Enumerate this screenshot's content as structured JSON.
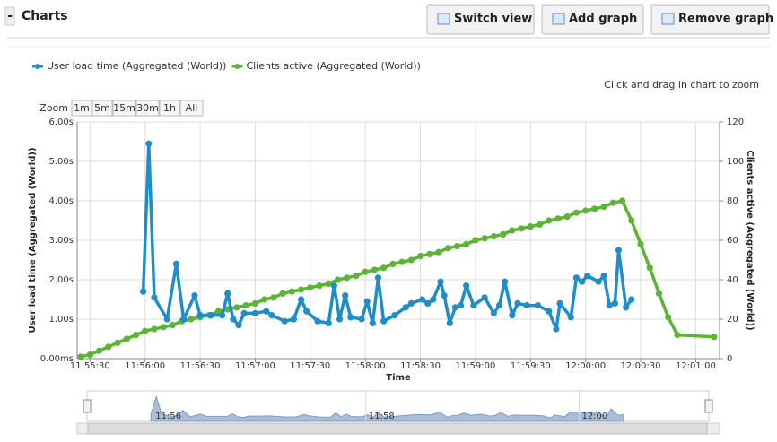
{
  "header": {
    "collapse": "-",
    "title": "Charts",
    "buttons": [
      "Switch view",
      "Add graph",
      "Remove graph"
    ]
  },
  "hint": "Click and drag in chart to zoom",
  "zoom": {
    "label": "Zoom",
    "buttons": [
      "1m",
      "5m",
      "15m",
      "30m",
      "1h",
      "All"
    ]
  },
  "navigator": {
    "labels": [
      "11:56",
      "11:58",
      "12:00"
    ]
  },
  "chart_data": {
    "type": "line",
    "x_label": "Time",
    "y_label": "User load time (Aggregated (World))",
    "y2_label": "Clients active (Aggregated (World))",
    "xlim": [
      "11:55:23",
      "12:01:13"
    ],
    "xticks": [
      "11:55:30",
      "11:56:00",
      "11:56:30",
      "11:57:00",
      "11:57:30",
      "11:58:00",
      "11:58:30",
      "11:59:00",
      "11:59:30",
      "12:00:00",
      "12:00:30",
      "12:01:00"
    ],
    "ylim": [
      0,
      6
    ],
    "yticks": [
      {
        "value": 0,
        "label": "0.00ms"
      },
      {
        "value": 1,
        "label": "1.00s"
      },
      {
        "value": 2,
        "label": "2.00s"
      },
      {
        "value": 3,
        "label": "3.00s"
      },
      {
        "value": 4,
        "label": "4.00s"
      },
      {
        "value": 5,
        "label": "5.00s"
      },
      {
        "value": 6,
        "label": "6.00s"
      }
    ],
    "y2lim": [
      0,
      120
    ],
    "y2ticks": [
      0,
      20,
      40,
      60,
      80,
      100,
      120
    ],
    "grid": true,
    "legend": "top-left",
    "series": [
      {
        "name": "User load time (Aggregated (World))",
        "color": "#1f8dc8",
        "axis": "y",
        "x": [
          "11:55:59",
          "11:56:02",
          "11:56:05",
          "11:56:12",
          "11:56:17",
          "11:56:21",
          "11:56:27",
          "11:56:30",
          "11:56:36",
          "11:56:42",
          "11:56:45",
          "11:56:48",
          "11:56:51",
          "11:56:54",
          "11:57:00",
          "11:57:06",
          "11:57:09",
          "11:57:16",
          "11:57:21",
          "11:57:25",
          "11:57:28",
          "11:57:34",
          "11:57:40",
          "11:57:43",
          "11:57:46",
          "11:57:49",
          "11:57:52",
          "11:57:58",
          "11:58:01",
          "11:58:04",
          "11:58:07",
          "11:58:10",
          "11:58:16",
          "11:58:22",
          "11:58:25",
          "11:58:31",
          "11:58:34",
          "11:58:37",
          "11:58:41",
          "11:58:43",
          "11:58:46",
          "11:58:49",
          "11:58:52",
          "11:58:55",
          "11:58:59",
          "11:59:05",
          "11:59:10",
          "11:59:13",
          "11:59:16",
          "11:59:20",
          "11:59:23",
          "11:59:28",
          "11:59:34",
          "11:59:40",
          "11:59:44",
          "11:59:46",
          "11:59:52",
          "11:59:55",
          "11:59:58",
          "12:00:01",
          "12:00:07",
          "12:00:10",
          "12:00:13",
          "12:00:16",
          "12:00:18",
          "12:00:22",
          "12:00:25"
        ],
        "values": [
          1.7,
          5.45,
          1.55,
          1.0,
          2.4,
          1.0,
          1.6,
          1.1,
          1.1,
          1.1,
          1.65,
          1.0,
          0.85,
          1.15,
          1.15,
          1.2,
          1.1,
          0.95,
          1.0,
          1.5,
          1.2,
          0.95,
          0.9,
          1.85,
          1.0,
          1.6,
          1.05,
          1.0,
          1.45,
          0.9,
          2.05,
          0.95,
          1.1,
          1.3,
          1.4,
          1.5,
          1.4,
          1.5,
          1.95,
          1.6,
          0.9,
          1.3,
          1.35,
          1.85,
          1.35,
          1.55,
          1.15,
          1.35,
          1.95,
          1.1,
          1.4,
          1.35,
          1.35,
          1.2,
          0.75,
          1.4,
          1.05,
          2.05,
          1.95,
          2.1,
          1.95,
          2.1,
          1.35,
          1.4,
          2.75,
          1.3,
          1.5
        ]
      },
      {
        "name": "Clients active (Aggregated (World))",
        "color": "#5bb534",
        "axis": "y2",
        "x": [
          "11:55:25",
          "11:55:30",
          "11:55:35",
          "11:55:40",
          "11:55:45",
          "11:55:50",
          "11:55:55",
          "11:56:00",
          "11:56:05",
          "11:56:10",
          "11:56:15",
          "11:56:20",
          "11:56:25",
          "11:56:30",
          "11:56:35",
          "11:56:40",
          "11:56:45",
          "11:56:50",
          "11:56:55",
          "11:57:00",
          "11:57:05",
          "11:57:10",
          "11:57:15",
          "11:57:20",
          "11:57:25",
          "11:57:30",
          "11:57:35",
          "11:57:40",
          "11:57:45",
          "11:57:50",
          "11:57:55",
          "11:58:00",
          "11:58:05",
          "11:58:10",
          "11:58:15",
          "11:58:20",
          "11:58:25",
          "11:58:30",
          "11:58:35",
          "11:58:40",
          "11:58:45",
          "11:58:50",
          "11:58:55",
          "11:59:00",
          "11:59:05",
          "11:59:10",
          "11:59:15",
          "11:59:20",
          "11:59:25",
          "11:59:30",
          "11:59:35",
          "11:59:40",
          "11:59:45",
          "11:59:50",
          "11:59:55",
          "12:00:00",
          "12:00:05",
          "12:00:10",
          "12:00:15",
          "12:00:20",
          "12:00:25",
          "12:00:30",
          "12:00:35",
          "12:00:40",
          "12:00:45",
          "12:00:50",
          "12:01:10"
        ],
        "values": [
          1,
          2,
          4,
          6,
          8,
          10,
          12,
          14,
          15,
          16,
          17,
          19,
          20,
          21,
          22,
          24,
          25,
          26,
          27,
          28,
          30,
          31,
          33,
          34,
          35,
          36,
          37,
          38,
          40,
          41,
          42,
          44,
          45,
          46,
          48,
          49,
          50,
          52,
          53,
          54,
          56,
          57,
          58,
          60,
          61,
          62,
          63,
          65,
          66,
          67,
          68,
          70,
          71,
          72,
          74,
          75,
          76,
          77,
          79,
          80,
          70,
          58,
          46,
          33,
          21,
          12,
          11
        ]
      }
    ]
  }
}
